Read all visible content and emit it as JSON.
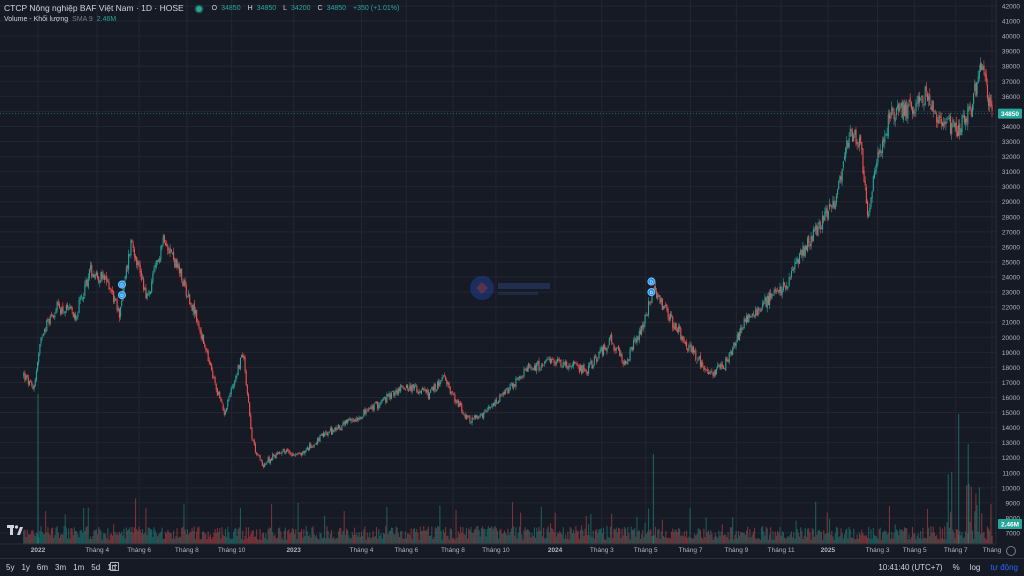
{
  "legend": {
    "title": "CTCP Nông nghiệp BAF Việt Nam · 1D · HOSE",
    "o_label": "O",
    "o_value": "34850",
    "h_label": "H",
    "h_value": "34850",
    "l_label": "L",
    "l_value": "34200",
    "c_label": "C",
    "c_value": "34850",
    "change": "+350 (+1.01%)",
    "volume_label": "Volume - Khối lượng",
    "volume_sma": "SMA 9",
    "volume_value": "2.46M"
  },
  "bottombar": {
    "ranges": [
      "5y",
      "1y",
      "6m",
      "3m",
      "1m",
      "5d",
      "1d"
    ],
    "time": "10:41:40 (UTC+7)",
    "percent": "%",
    "log": "log",
    "auto": "tự động"
  },
  "colors": {
    "up": "#26a69a",
    "down": "#ef5350",
    "background": "#161a25",
    "grid": "#232632",
    "text": "#b2b5be",
    "last_price_bg": "#26a69a",
    "marker": "#2196f3"
  },
  "chart_data": {
    "type": "candlestick",
    "ylim": [
      7000,
      42000
    ],
    "y_ticks": [
      7000,
      8000,
      9000,
      10000,
      11000,
      12000,
      13000,
      14000,
      15000,
      16000,
      17000,
      18000,
      19000,
      20000,
      21000,
      22000,
      23000,
      24000,
      25000,
      26000,
      27000,
      28000,
      29000,
      30000,
      31000,
      32000,
      33000,
      34000,
      35000,
      36000,
      37000,
      38000,
      39000,
      40000,
      41000,
      42000
    ],
    "last_price": "34850",
    "last_volume": "2.46M",
    "x_ticks": [
      {
        "label": "2022",
        "t": 0.0,
        "bold": true
      },
      {
        "label": "Tháng 4",
        "t": 0.062
      },
      {
        "label": "Tháng 6",
        "t": 0.106
      },
      {
        "label": "Tháng 8",
        "t": 0.156
      },
      {
        "label": "Tháng 10",
        "t": 0.203
      },
      {
        "label": "2023",
        "t": 0.268,
        "bold": true
      },
      {
        "label": "Tháng 4",
        "t": 0.339
      },
      {
        "label": "Tháng 6",
        "t": 0.386
      },
      {
        "label": "Tháng 8",
        "t": 0.435
      },
      {
        "label": "Tháng 10",
        "t": 0.48
      },
      {
        "label": "2024",
        "t": 0.542,
        "bold": true
      },
      {
        "label": "Tháng 3",
        "t": 0.591
      },
      {
        "label": "Tháng 5",
        "t": 0.637
      },
      {
        "label": "Tháng 7",
        "t": 0.684
      },
      {
        "label": "Tháng 9",
        "t": 0.732
      },
      {
        "label": "Tháng 11",
        "t": 0.779
      },
      {
        "label": "2025",
        "t": 0.828,
        "bold": true
      },
      {
        "label": "Tháng 3",
        "t": 0.88
      },
      {
        "label": "Tháng 5",
        "t": 0.919
      },
      {
        "label": "Tháng 7",
        "t": 0.962
      },
      {
        "label": "Tháng",
        "t": 1.0
      }
    ],
    "price_anchors": [
      {
        "t": -0.015,
        "p": 17500
      },
      {
        "t": -0.005,
        "p": 16500
      },
      {
        "t": 0.005,
        "p": 20500
      },
      {
        "t": 0.02,
        "p": 22000
      },
      {
        "t": 0.04,
        "p": 21500
      },
      {
        "t": 0.055,
        "p": 24500
      },
      {
        "t": 0.075,
        "p": 23500
      },
      {
        "t": 0.085,
        "p": 21500
      },
      {
        "t": 0.098,
        "p": 26500
      },
      {
        "t": 0.115,
        "p": 22500
      },
      {
        "t": 0.132,
        "p": 26800
      },
      {
        "t": 0.15,
        "p": 24000
      },
      {
        "t": 0.165,
        "p": 21500
      },
      {
        "t": 0.185,
        "p": 17000
      },
      {
        "t": 0.195,
        "p": 15000
      },
      {
        "t": 0.215,
        "p": 19000
      },
      {
        "t": 0.225,
        "p": 13000
      },
      {
        "t": 0.235,
        "p": 11500
      },
      {
        "t": 0.255,
        "p": 12500
      },
      {
        "t": 0.275,
        "p": 12200
      },
      {
        "t": 0.3,
        "p": 13500
      },
      {
        "t": 0.33,
        "p": 14500
      },
      {
        "t": 0.355,
        "p": 15500
      },
      {
        "t": 0.385,
        "p": 16800
      },
      {
        "t": 0.41,
        "p": 16200
      },
      {
        "t": 0.425,
        "p": 17300
      },
      {
        "t": 0.45,
        "p": 14500
      },
      {
        "t": 0.465,
        "p": 14700
      },
      {
        "t": 0.49,
        "p": 16300
      },
      {
        "t": 0.515,
        "p": 18000
      },
      {
        "t": 0.545,
        "p": 18400
      },
      {
        "t": 0.575,
        "p": 17800
      },
      {
        "t": 0.6,
        "p": 19800
      },
      {
        "t": 0.615,
        "p": 18200
      },
      {
        "t": 0.635,
        "p": 21000
      },
      {
        "t": 0.645,
        "p": 23200
      },
      {
        "t": 0.66,
        "p": 21500
      },
      {
        "t": 0.68,
        "p": 19500
      },
      {
        "t": 0.705,
        "p": 17500
      },
      {
        "t": 0.72,
        "p": 18200
      },
      {
        "t": 0.74,
        "p": 21000
      },
      {
        "t": 0.765,
        "p": 22500
      },
      {
        "t": 0.785,
        "p": 23500
      },
      {
        "t": 0.8,
        "p": 25500
      },
      {
        "t": 0.815,
        "p": 27000
      },
      {
        "t": 0.835,
        "p": 29000
      },
      {
        "t": 0.85,
        "p": 33500
      },
      {
        "t": 0.862,
        "p": 33000
      },
      {
        "t": 0.87,
        "p": 28000
      },
      {
        "t": 0.88,
        "p": 32000
      },
      {
        "t": 0.895,
        "p": 35000
      },
      {
        "t": 0.915,
        "p": 35200
      },
      {
        "t": 0.93,
        "p": 36200
      },
      {
        "t": 0.945,
        "p": 34500
      },
      {
        "t": 0.965,
        "p": 33800
      },
      {
        "t": 0.98,
        "p": 35500
      },
      {
        "t": 0.988,
        "p": 38500
      },
      {
        "t": 1.0,
        "p": 34850
      }
    ],
    "markers": [
      {
        "t": 0.088,
        "p": 23500,
        "label": "D"
      },
      {
        "t": 0.088,
        "p": 22800,
        "label": "D"
      },
      {
        "t": 0.643,
        "p": 23700,
        "label": "D"
      },
      {
        "t": 0.643,
        "p": 23000,
        "label": "D"
      }
    ]
  }
}
